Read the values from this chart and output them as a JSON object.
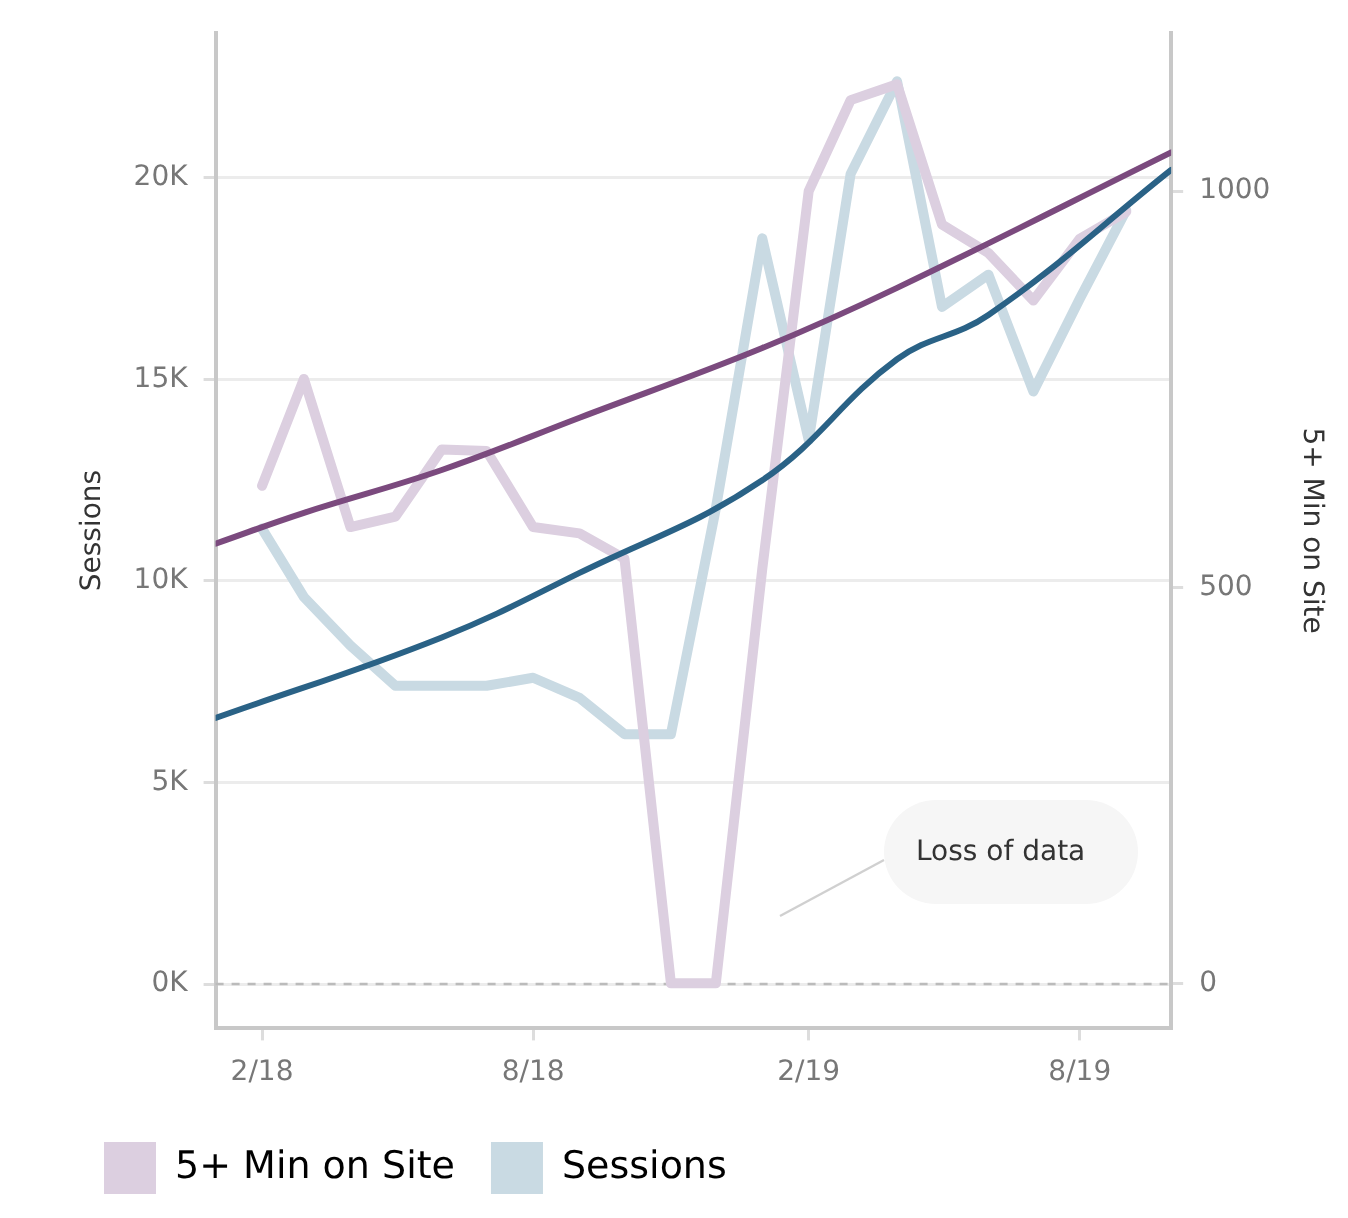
{
  "chart_data": {
    "type": "line",
    "ylabel": "Sessions",
    "y2label": "5+ Min on Site",
    "x": [
      "2018-02",
      "2018-03",
      "2018-04",
      "2018-05",
      "2018-06",
      "2018-07",
      "2018-08",
      "2018-09",
      "2018-10",
      "2018-11",
      "2018-12",
      "2019-01",
      "2019-02",
      "2019-03",
      "2019-04",
      "2019-05",
      "2019-06",
      "2019-07",
      "2019-08",
      "2019-09"
    ],
    "series": [
      {
        "name": "5+ Min on Site",
        "color": "#dccfe0",
        "axis": "y2",
        "values": [
          628,
          763,
          576,
          589,
          674,
          672,
          576,
          568,
          536,
          0,
          0,
          523,
          1000,
          1115,
          1135,
          958,
          922,
          862,
          940,
          974
        ]
      },
      {
        "name": "Sessions",
        "color": "#c9dae3",
        "values": [
          11300,
          9600,
          8400,
          7400,
          7400,
          7400,
          7600,
          7100,
          6200,
          6200,
          11800,
          18500,
          13500,
          20100,
          22400,
          16800,
          17600,
          14700,
          17000,
          19200
        ]
      },
      {
        "type": "line",
        "color": "#7b4a7e",
        "axis": "y2",
        "x": [
          "2018-01",
          "2018-03",
          "2018-06",
          "2018-09",
          "2019-01",
          "2019-04",
          "2019-10"
        ],
        "values": [
          555,
          594,
          648,
          714,
          802,
          878,
          1049
        ]
      },
      {
        "type": "line",
        "color": "#2a6286",
        "x": [
          "2018-01",
          "2018-06",
          "2018-09",
          "2019-01",
          "2019-04",
          "2019-06",
          "2019-10"
        ],
        "values": [
          6600,
          8600,
          10200,
          12500,
          15500,
          16600,
          20200
        ]
      }
    ],
    "xlim": [
      "2018-01",
      "2019-10"
    ],
    "xticks": [
      {
        "value": "2018-02",
        "label": "2/18"
      },
      {
        "value": "2018-08",
        "label": "8/18"
      },
      {
        "value": "2019-02",
        "label": "2/19"
      },
      {
        "value": "2019-08",
        "label": "8/19"
      }
    ],
    "ylim": [
      -1100,
      23600
    ],
    "yticks": [
      {
        "value": 0,
        "label": "0K"
      },
      {
        "value": 5000,
        "label": "5K"
      },
      {
        "value": 10000,
        "label": "10K"
      },
      {
        "value": 15000,
        "label": "15K"
      },
      {
        "value": 20000,
        "label": "20K"
      }
    ],
    "y2lim": [
      -57,
      1200
    ],
    "y2ticks": [
      0,
      500,
      1000
    ],
    "ref_lines": [
      {
        "axis": "y",
        "value": 0,
        "color": "#bbbbbb",
        "line_style": "dashed"
      }
    ],
    "annotations": [
      "Loss of data"
    ],
    "grid": "y",
    "legend": "bottom left",
    "marker": "none"
  }
}
